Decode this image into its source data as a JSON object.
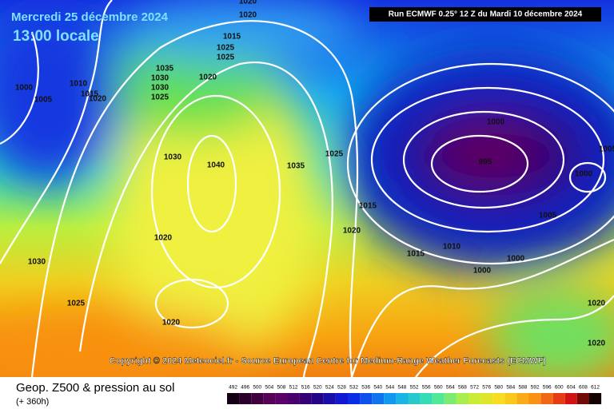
{
  "header": {
    "date": "Mercredi 25 décembre 2024",
    "time": "13:00 locale"
  },
  "run_info": "Run ECMWF 0.25° 12 Z du Mardi 10 décembre 2024",
  "copyright": "Copyright © 2024 Meteociel.fr - Source European Centre for Medium-Range Weather Forecasts (ECMWF)",
  "isobar_labels": [
    1020,
    1020,
    1015,
    1025,
    1025,
    1000,
    1005,
    1010,
    1015,
    1020,
    1035,
    1030,
    1030,
    1025,
    1020,
    1030,
    1040,
    1035,
    1025,
    1015,
    1020,
    1020,
    1030,
    1025,
    1020,
    1010,
    1015,
    1000,
    995,
    1000,
    1005,
    1000,
    1000,
    1020,
    1020,
    1005
  ],
  "legend": {
    "title": "Geop. Z500 & pression au sol",
    "subtitle": "(+ 360h)",
    "scale": [
      492,
      496,
      500,
      504,
      508,
      512,
      516,
      520,
      524,
      528,
      532,
      536,
      540,
      544,
      548,
      552,
      556,
      560,
      564,
      568,
      572,
      576,
      580,
      584,
      588,
      592,
      596,
      600,
      604,
      608,
      612
    ]
  }
}
